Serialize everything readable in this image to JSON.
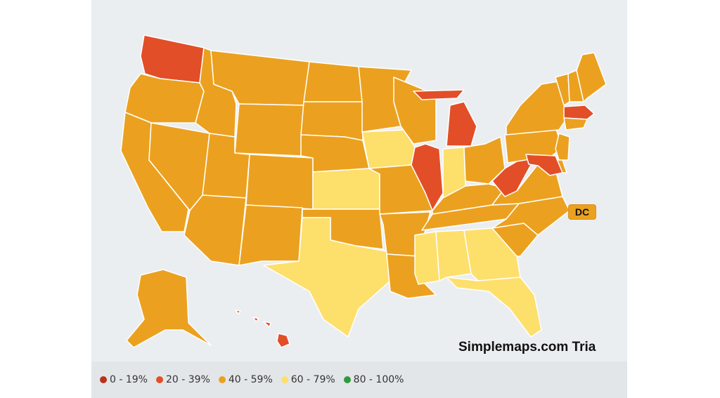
{
  "watermark": "Simplemaps.com Tria",
  "dc_label": "DC",
  "legend": [
    {
      "label": "0 - 19%",
      "color": "#b8321c"
    },
    {
      "label": "20 - 39%",
      "color": "#e24e27"
    },
    {
      "label": "40 - 59%",
      "color": "#eba11f"
    },
    {
      "label": "60 - 79%",
      "color": "#fddf6b"
    },
    {
      "label": "80 - 100%",
      "color": "#2f9a3b"
    }
  ],
  "states": {
    "WA": "20 - 39%",
    "OR": "40 - 59%",
    "CA": "40 - 59%",
    "NV": "40 - 59%",
    "ID": "40 - 59%",
    "MT": "40 - 59%",
    "WY": "40 - 59%",
    "UT": "40 - 59%",
    "AZ": "40 - 59%",
    "CO": "40 - 59%",
    "NM": "40 - 59%",
    "ND": "40 - 59%",
    "SD": "40 - 59%",
    "NE": "40 - 59%",
    "KS": "60 - 79%",
    "OK": "40 - 59%",
    "TX": "60 - 79%",
    "MN": "40 - 59%",
    "IA": "60 - 79%",
    "MO": "40 - 59%",
    "AR": "40 - 59%",
    "LA": "40 - 59%",
    "WI": "40 - 59%",
    "IL": "20 - 39%",
    "MI": "20 - 39%",
    "IN": "60 - 79%",
    "OH": "40 - 59%",
    "KY": "40 - 59%",
    "TN": "40 - 59%",
    "MS": "60 - 79%",
    "AL": "60 - 79%",
    "GA": "60 - 79%",
    "FL": "60 - 79%",
    "SC": "40 - 59%",
    "NC": "40 - 59%",
    "VA": "40 - 59%",
    "WV": "20 - 39%",
    "PA": "40 - 59%",
    "NY": "40 - 59%",
    "VT": "40 - 59%",
    "NH": "40 - 59%",
    "ME": "40 - 59%",
    "MA": "20 - 39%",
    "CT": "40 - 59%",
    "NJ": "40 - 59%",
    "DE": "40 - 59%",
    "MD": "20 - 39%",
    "AK": "40 - 59%",
    "HI": "20 - 39%",
    "DC": "40 - 59%"
  }
}
